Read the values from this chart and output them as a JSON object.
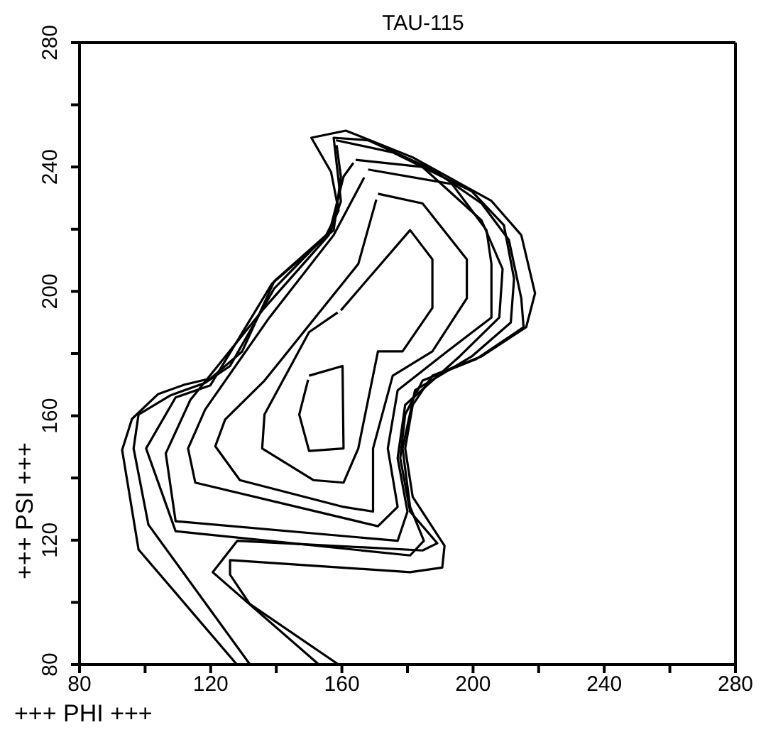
{
  "chart_data": {
    "type": "line",
    "title": "TAU-115",
    "xlabel": "+++ PHI +++",
    "ylabel": "+++ PSI +++",
    "xlim": [
      80,
      280
    ],
    "ylim": [
      80,
      280
    ],
    "xticks": [
      80,
      {
        "value": 100,
        "label": null
      },
      120,
      {
        "value": 140,
        "label": null
      },
      160,
      {
        "value": 180,
        "label": null
      },
      200,
      {
        "value": 220,
        "label": null
      },
      240,
      {
        "value": 260,
        "label": null
      },
      280
    ],
    "yticks": [
      80,
      {
        "value": 100,
        "label": null
      },
      120,
      {
        "value": 140,
        "label": null
      },
      160,
      {
        "value": 180,
        "label": null
      },
      200,
      {
        "value": 220,
        "label": null
      },
      240,
      {
        "value": 260,
        "label": null
      },
      280
    ],
    "grid": false,
    "marker": "none",
    "line_style": "solid",
    "series": [
      {
        "color": "#000000",
        "x": [
          128,
          98,
          93,
          96,
          104,
          112,
          120,
          129.6,
          139.4,
          155.2,
          159,
          156.7,
          150.7,
          161.2,
          181.6,
          205.6,
          214.7,
          218.9,
          216.2,
          202.6,
          187.6,
          181.6,
          179.3,
          181.6,
          191.3,
          190.6,
          180.8,
          125.9,
          125.9,
          131.9,
          159
        ],
        "values": [
          80,
          117,
          149,
          159,
          167,
          170,
          172,
          180.7,
          203.3,
          218.1,
          226,
          238.4,
          249.4,
          251.7,
          243.1,
          229.1,
          218.1,
          199.4,
          188.5,
          179.1,
          172.9,
          163.5,
          149.5,
          133.9,
          118.2,
          111.2,
          109.7,
          113.6,
          108.9,
          99.5,
          80
        ]
      },
      {
        "color": "#000000",
        "x": [
          132,
          101,
          96.5,
          98,
          107.8,
          118.3,
          125.9,
          139.4,
          156.7,
          159.7,
          157.5,
          168,
          187.6,
          202.6,
          210.9,
          214.7,
          215.4,
          201.1,
          184.6,
          179.3,
          177.8,
          180.8,
          189.1,
          184.6,
          128.1,
          120.6,
          153
        ],
        "values": [
          80,
          125,
          149.5,
          160.4,
          166.6,
          170.6,
          176,
          201,
          219.7,
          229,
          249.4,
          248.6,
          239.2,
          228.3,
          216.6,
          197.8,
          188.5,
          178.3,
          171.3,
          160.4,
          146.4,
          129.2,
          119,
          116.7,
          119.8,
          109.7,
          80
        ]
      },
      {
        "color": "#000000",
        "x": [
          158.2,
          175.5,
          199.6,
          209.4,
          212.5,
          211.5,
          199.6,
          182.3,
          178.5,
          180.8,
          185,
          180.8,
          109.3,
          100.3,
          109.3,
          119.9,
          138.7,
          157.5,
          159.7,
          158.4
        ],
        "values": [
          248.6,
          244.7,
          232.2,
          221.3,
          204.1,
          190,
          179.1,
          168.2,
          149.5,
          130.7,
          119.8,
          115.1,
          122.9,
          149.5,
          165.9,
          169.8,
          202.5,
          219.7,
          236.9,
          247
        ]
      },
      {
        "color": "#000000",
        "x": [
          164.2,
          184.6,
          202.6,
          209,
          208,
          195.9,
          179.3,
          177,
          180,
          177,
          109.3,
          106.3,
          113.8,
          136.4,
          156,
          160.5,
          163.5
        ],
        "values": [
          242.3,
          240,
          222.8,
          207.2,
          191.6,
          179.1,
          163.5,
          146.4,
          129.2,
          119.8,
          126.1,
          147.9,
          165.1,
          194.7,
          218.1,
          236.9,
          241.3
        ]
      },
      {
        "color": "#000000",
        "x": [
          168,
          193.6,
          204.1,
          205.6,
          205.6,
          192.1,
          177,
          174,
          177,
          171,
          115.3,
          113.1,
          118.3,
          137.9,
          157.5,
          166.8
        ],
        "values": [
          239.2,
          234.5,
          219.7,
          208.8,
          191.6,
          180.7,
          168.2,
          149.5,
          130.7,
          124.5,
          138.5,
          149.5,
          162,
          191.6,
          218.1,
          236.6
        ]
      },
      {
        "color": "#000000",
        "x": [
          171,
          184.6,
          198.1,
          198.1,
          187.6,
          175.5,
          169.5,
          169.5,
          160.5,
          128.9,
          121.4,
          124.4,
          136.4,
          165,
          170.5
        ],
        "values": [
          231.4,
          228.3,
          210.3,
          197.8,
          180.7,
          172.9,
          149.5,
          129.2,
          130.7,
          139.3,
          150.2,
          158.8,
          171.3,
          208.8,
          229.5
        ]
      },
      {
        "color": "#000000",
        "x": [
          159.7,
          180.8,
          187.6,
          187.6,
          178.5,
          171,
          165,
          160.5,
          151.4,
          135.7,
          136.4,
          150,
          158.7
        ],
        "values": [
          193.9,
          219.7,
          210.3,
          194.7,
          180.7,
          180.7,
          149.5,
          138.5,
          139.3,
          149.5,
          160.4,
          186.9,
          193.2
        ]
      },
      {
        "color": "#000000",
        "x": [
          150,
          160.2,
          160.5,
          150,
          147,
          149.7
        ],
        "values": [
          172.9,
          176,
          149.5,
          148.7,
          160.4,
          171.6
        ]
      }
    ]
  }
}
